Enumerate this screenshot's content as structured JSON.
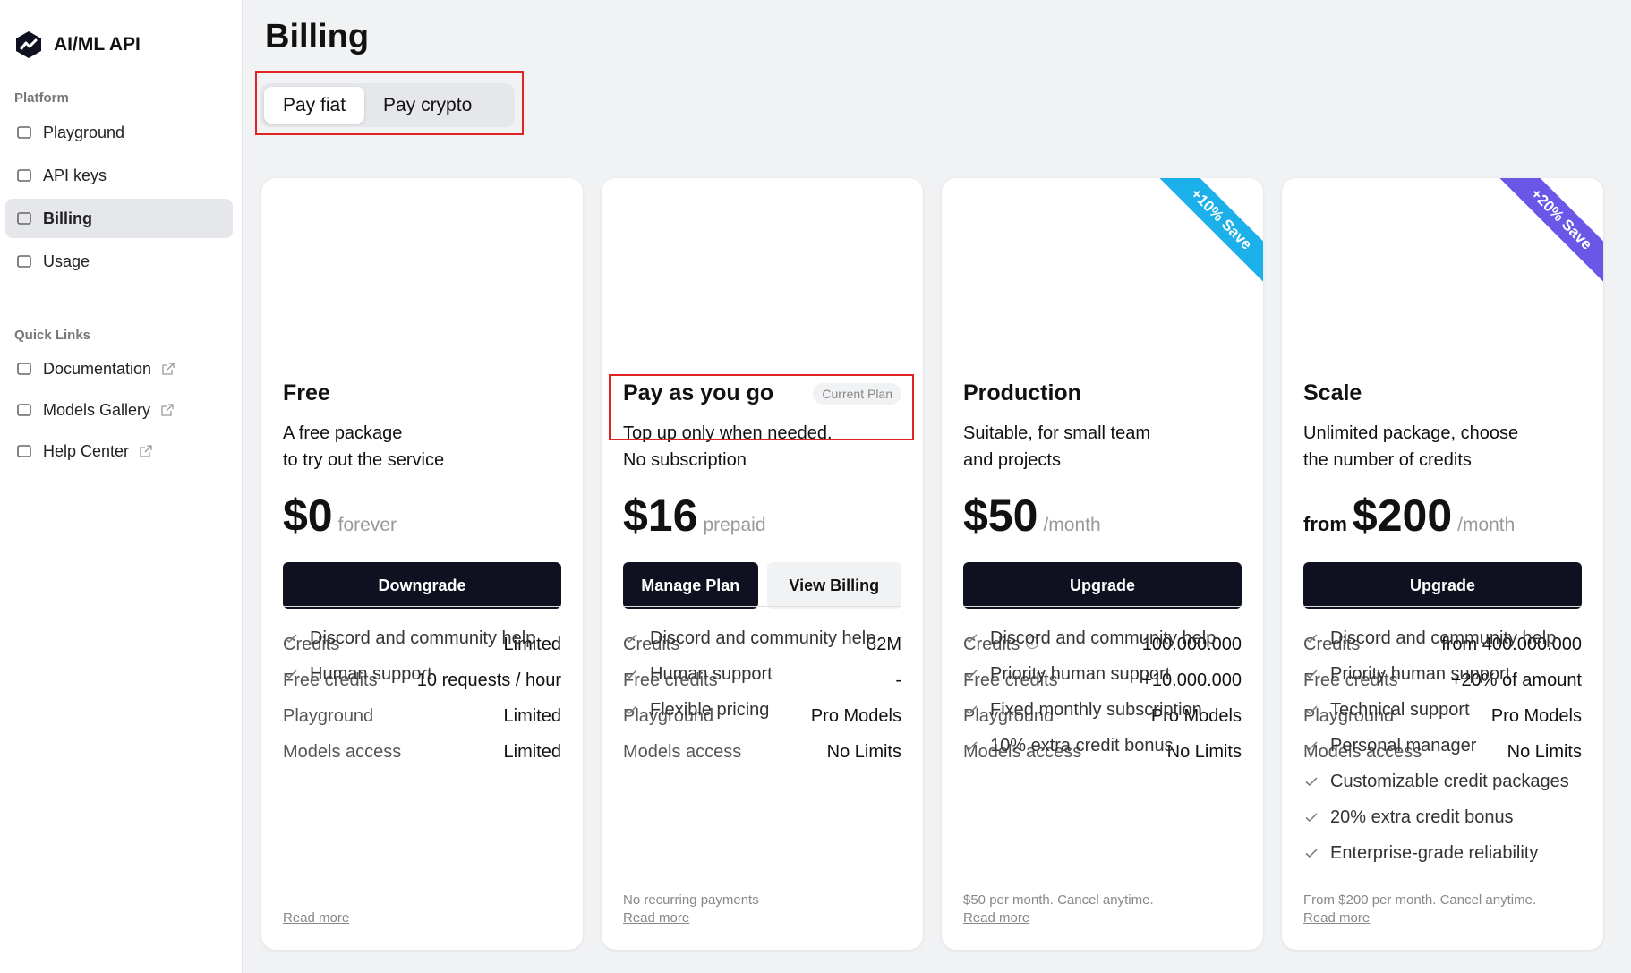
{
  "sidebar": {
    "brand": "AI/ML API",
    "platform_title": "Platform",
    "platform": [
      "Playground",
      "API keys",
      "Billing",
      "Usage"
    ],
    "active": "Billing",
    "quick_title": "Quick Links",
    "quick_links": [
      "Documentation",
      "Models Gallery",
      "Help Center"
    ]
  },
  "main": {
    "title": "Billing",
    "tabs": [
      "Pay fiat",
      "Pay crypto"
    ],
    "active_tab": "Pay fiat",
    "plans": [
      {
        "name": "Free",
        "description": [
          "A free package",
          "to try out the service"
        ],
        "price": "$0",
        "suffix": "forever",
        "buttons": [
          "Downgrade"
        ],
        "rows": [
          [
            "Credits",
            "Limited"
          ],
          [
            "Free credits",
            "10 requests / hour"
          ],
          [
            "Playground",
            "Limited"
          ],
          [
            "Models access",
            "Limited"
          ]
        ],
        "features": [
          "Discord and community help",
          "Human support"
        ],
        "read_more": "Read more"
      },
      {
        "name": "Pay as you go",
        "badge": "Current Plan",
        "description": [
          "Top up only when needed.",
          "No subscription"
        ],
        "price": "$16",
        "suffix": "prepaid",
        "buttons": [
          "Manage Plan",
          "View Billing"
        ],
        "rows": [
          [
            "Credits",
            "32M"
          ],
          [
            "Free credits",
            "-"
          ],
          [
            "Playground",
            "Pro Models"
          ],
          [
            "Models access",
            "No Limits"
          ]
        ],
        "features": [
          "Discord and community help",
          "Human support",
          "Flexible pricing"
        ],
        "note": "No recurring payments",
        "read_more": "Read more"
      },
      {
        "name": "Production",
        "ribbon": "+10% Save",
        "ribbon_color": "#1cb0ea",
        "description": [
          "Suitable, for small team",
          "and projects"
        ],
        "price": "$50",
        "suffix": "/month",
        "buttons": [
          "Upgrade"
        ],
        "rows": [
          [
            "Credits",
            "100.000.000"
          ],
          [
            "Free credits",
            "+10.000.000"
          ],
          [
            "Playground",
            "Pro Models"
          ],
          [
            "Models access",
            "No Limits"
          ]
        ],
        "features": [
          "Discord and community help",
          "Priority human support",
          "Fixed monthly subscription",
          "10% extra credit bonus"
        ],
        "note": "$50 per month. Cancel anytime.",
        "read_more": "Read more"
      },
      {
        "name": "Scale",
        "ribbon": "+20% Save",
        "ribbon_color": "#6a57e8",
        "description": [
          "Unlimited package, choose",
          "the number of credits"
        ],
        "prefix": "from",
        "price": "$200",
        "suffix": "/month",
        "buttons": [
          "Upgrade"
        ],
        "rows": [
          [
            "Credits",
            "from 400.000.000"
          ],
          [
            "Free credits",
            "+20% of amount"
          ],
          [
            "Playground",
            "Pro Models"
          ],
          [
            "Models access",
            "No Limits"
          ]
        ],
        "features": [
          "Discord and community help",
          "Priority human support",
          "Technical support",
          "Personal manager",
          "Customizable credit packages",
          "20% extra credit bonus",
          "Enterprise-grade reliability"
        ],
        "note": "From $200 per month. Cancel anytime.",
        "read_more": "Read more"
      }
    ]
  }
}
